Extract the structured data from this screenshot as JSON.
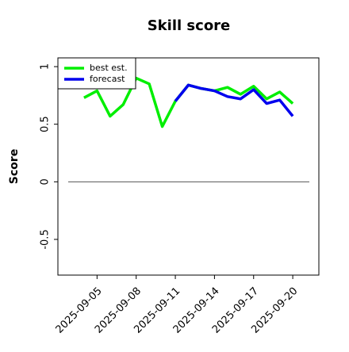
{
  "chart_data": {
    "type": "line",
    "title": "Skill score",
    "ylabel": "Score",
    "x": [
      "2025-09-04",
      "2025-09-05",
      "2025-09-06",
      "2025-09-07",
      "2025-09-08",
      "2025-09-09",
      "2025-09-10",
      "2025-09-11",
      "2025-09-12",
      "2025-09-13",
      "2025-09-14",
      "2025-09-15",
      "2025-09-16",
      "2025-09-17",
      "2025-09-18",
      "2025-09-19",
      "2025-09-20"
    ],
    "series": [
      {
        "name": "best est.",
        "color": "#00ee00",
        "values": [
          0.73,
          0.79,
          0.57,
          0.67,
          0.9,
          0.85,
          0.48,
          0.7,
          0.84,
          0.81,
          0.79,
          0.82,
          0.76,
          0.83,
          0.72,
          0.78,
          0.68
        ]
      },
      {
        "name": "forecast",
        "color": "#0000ee",
        "values": [
          null,
          null,
          null,
          null,
          null,
          null,
          null,
          0.7,
          0.84,
          0.81,
          0.79,
          0.74,
          0.72,
          0.8,
          0.68,
          0.71,
          0.57
        ]
      }
    ],
    "xlim": [
      "2025-09-02",
      "2025-09-22"
    ],
    "xticks": [
      "2025-09-05",
      "2025-09-08",
      "2025-09-11",
      "2025-09-14",
      "2025-09-17",
      "2025-09-20"
    ],
    "xtick_colors": [
      "#000000",
      "#000000",
      "#228b22",
      "#000000",
      "#000000",
      "#000000"
    ],
    "ylim": [
      -0.81,
      1.076
    ],
    "yticks": [
      -0.5,
      0.0,
      0.5,
      1.0
    ],
    "hline": 0,
    "legend": "upper left"
  }
}
